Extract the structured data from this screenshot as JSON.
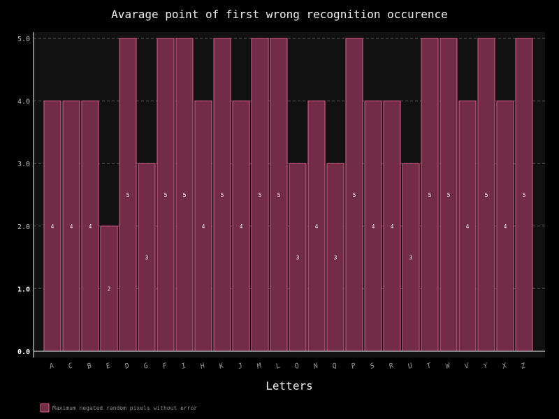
{
  "chart_data": {
    "type": "bar",
    "title": "Avarage point of first wrong recognition occurence",
    "xlabel": "Letters",
    "ylabel": "",
    "ylim": [
      0,
      5.2
    ],
    "yticks": [
      "0.0",
      "1.0",
      "2.0",
      "3.0",
      "4.0",
      "5.0"
    ],
    "grid": true,
    "legend_position": "bottom-left",
    "categories": [
      "A",
      "C",
      "B",
      "E",
      "D",
      "G",
      "F",
      "I",
      "H",
      "K",
      "J",
      "M",
      "L",
      "O",
      "N",
      "Q",
      "P",
      "S",
      "R",
      "U",
      "T",
      "W",
      "V",
      "Y",
      "X",
      "Z"
    ],
    "series": [
      {
        "name": "Maximum negated random pixels without error",
        "values": [
          4,
          4,
          4,
          2,
          5,
          3,
          5,
          5,
          4,
          5,
          4,
          5,
          5,
          3,
          4,
          3,
          5,
          4,
          4,
          3,
          5,
          5,
          4,
          5,
          4,
          5
        ],
        "labels": [
          "4",
          "4",
          "4",
          "2",
          "5",
          "3",
          "5",
          "5",
          "4",
          "5",
          "4",
          "5",
          "5",
          "3",
          "4",
          "3",
          "5",
          "4",
          "4",
          "3",
          "5",
          "5",
          "4",
          "5",
          "4",
          "5"
        ]
      }
    ],
    "colors": {
      "bar_fill": "#722c47",
      "bar_edge": "#e0608a",
      "plot_bg": "#111111",
      "page_bg": "#000000",
      "grid": "#5a5a5a"
    }
  }
}
